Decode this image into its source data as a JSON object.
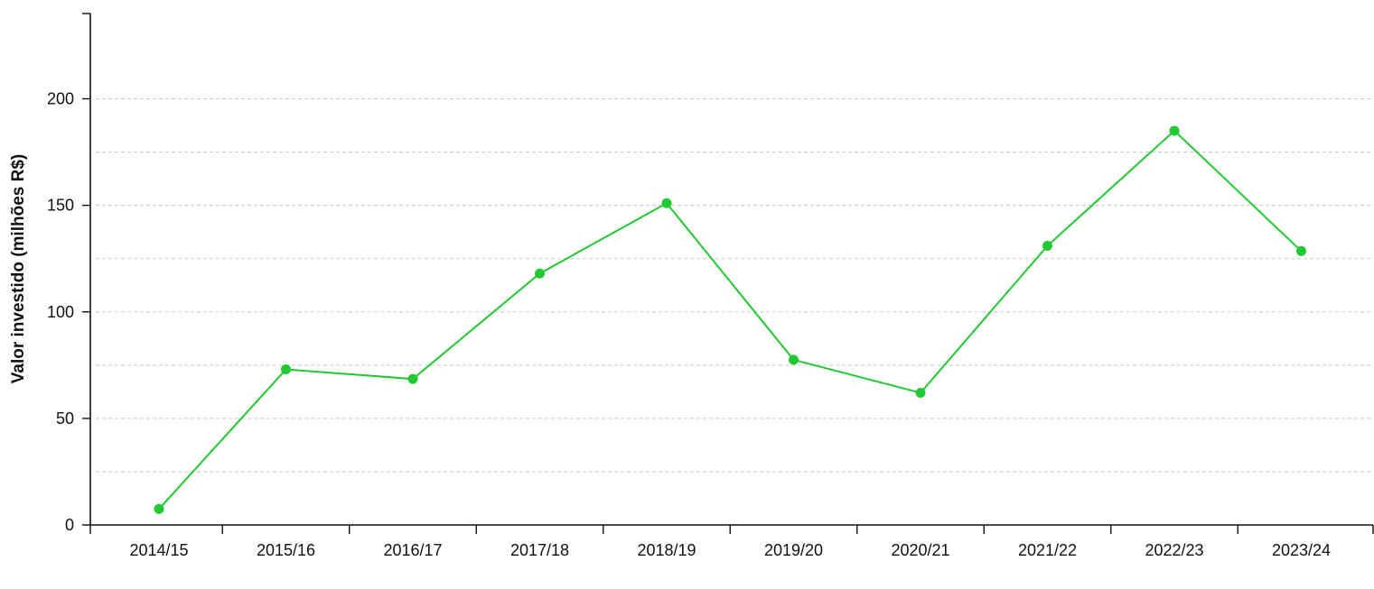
{
  "chart_data": {
    "type": "line",
    "categories": [
      "2014/15",
      "2015/16",
      "2016/17",
      "2017/18",
      "2018/19",
      "2019/20",
      "2020/21",
      "2021/22",
      "2022/23",
      "2023/24"
    ],
    "series": [
      {
        "values": [
          7.5,
          73,
          68.5,
          118,
          151,
          77.5,
          62,
          131,
          185,
          128.5
        ]
      }
    ],
    "title": "",
    "xlabel": "",
    "ylabel": "Valor investido (milhões R$)",
    "ylim": [
      0,
      240
    ],
    "yticks": [
      0,
      50,
      100,
      150,
      200
    ],
    "gridlines": [
      25,
      50,
      75,
      100,
      125,
      150,
      175,
      200
    ],
    "grid": true,
    "legend": "none",
    "colors": {
      "series": "#22c832",
      "axis": "#111111",
      "grid": "#c8c8c8"
    }
  }
}
